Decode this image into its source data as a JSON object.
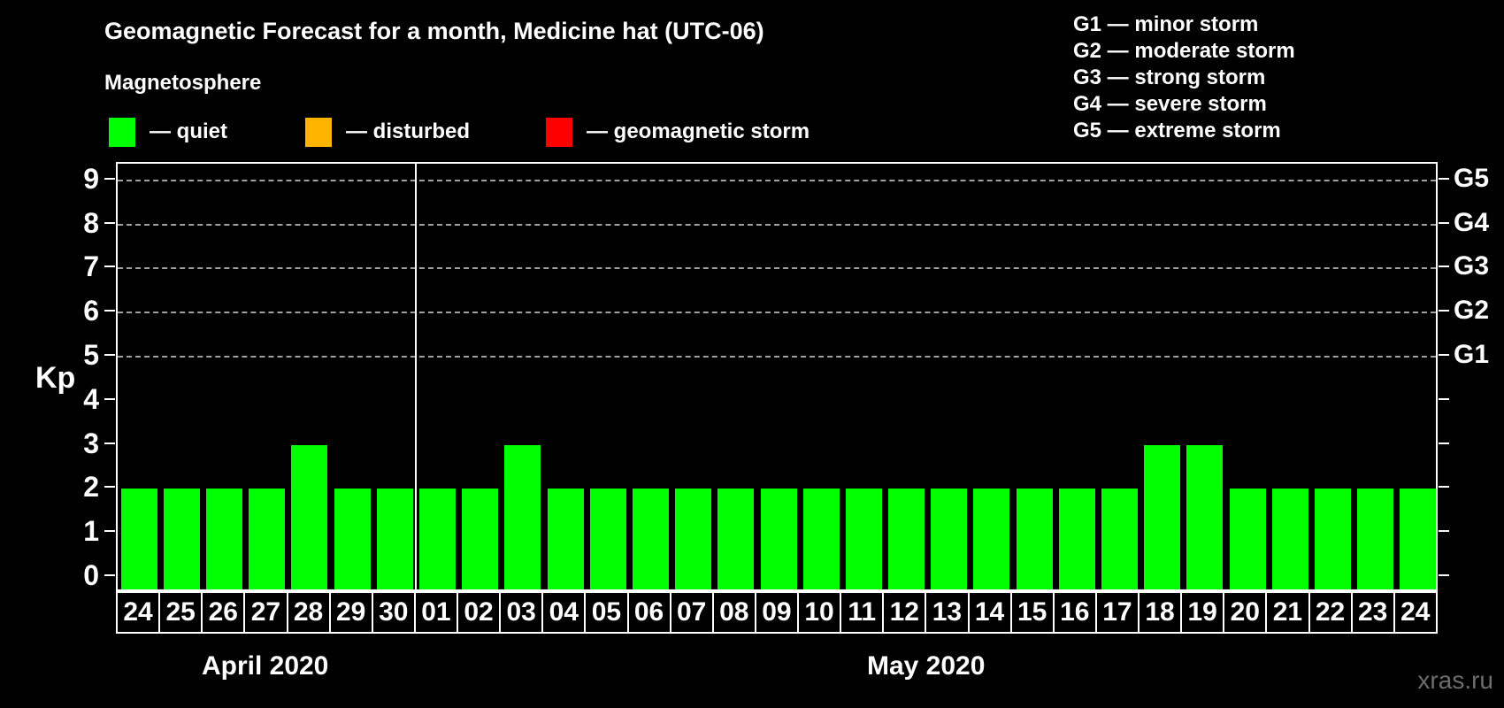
{
  "header": {
    "title": "Geomagnetic Forecast for a month, Medicine hat (UTC-06)",
    "subtitle": "Magnetosphere",
    "legend": [
      {
        "name": "quiet",
        "label": "— quiet",
        "color": "#00ff00"
      },
      {
        "name": "disturbed",
        "label": "— disturbed",
        "color": "#ffb400"
      },
      {
        "name": "geomagnetic-storm",
        "label": "— geomagnetic storm",
        "color": "#ff0000"
      }
    ],
    "g_scale_legend": [
      "G1 — minor storm",
      "G2 — moderate storm",
      "G3 — strong storm",
      "G4 — severe storm",
      "G5 — extreme storm"
    ]
  },
  "chart_data": {
    "type": "bar",
    "title": "Geomagnetic Forecast for a month, Medicine hat (UTC-06)",
    "ylabel": "Kp",
    "bar_color": "#00ff00",
    "background_color": "#000000",
    "grid": "dashed horizontal lines at Kp 5-9 only",
    "ylim": [
      -0.4,
      9.4
    ],
    "yticks": [
      0,
      1,
      2,
      3,
      4,
      5,
      6,
      7,
      8,
      9
    ],
    "gridlines_at": [
      5,
      6,
      7,
      8,
      9
    ],
    "right_axis_labels": [
      {
        "kp": 5,
        "label": "G1"
      },
      {
        "kp": 6,
        "label": "G2"
      },
      {
        "kp": 7,
        "label": "G3"
      },
      {
        "kp": 8,
        "label": "G4"
      },
      {
        "kp": 9,
        "label": "G5"
      }
    ],
    "categories": [
      "24",
      "25",
      "26",
      "27",
      "28",
      "29",
      "30",
      "01",
      "02",
      "03",
      "04",
      "05",
      "06",
      "07",
      "08",
      "09",
      "10",
      "11",
      "12",
      "13",
      "14",
      "15",
      "16",
      "17",
      "18",
      "19",
      "20",
      "21",
      "22",
      "23",
      "24"
    ],
    "values": [
      2,
      2,
      2,
      2,
      3,
      2,
      2,
      2,
      2,
      3,
      2,
      2,
      2,
      2,
      2,
      2,
      2,
      2,
      2,
      2,
      2,
      2,
      2,
      2,
      3,
      3,
      2,
      2,
      2,
      2,
      2
    ],
    "month_separator_index": 7,
    "months": [
      {
        "label": "April 2020",
        "start_index": 0,
        "length": 7
      },
      {
        "label": "May 2020",
        "start_index": 7,
        "length": 24
      }
    ]
  },
  "watermark": "xras.ru"
}
